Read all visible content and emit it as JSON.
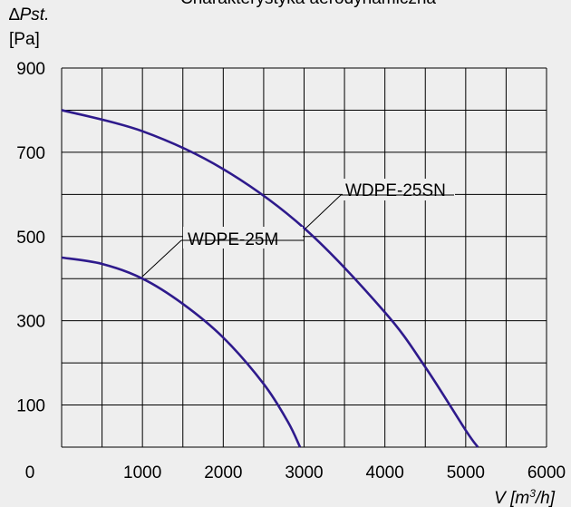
{
  "chart_data": {
    "type": "line",
    "title": "Charakterystyka aerodynamiczna",
    "ylabel": {
      "symbol": "∆",
      "name": "Pst.",
      "unit": "[Pa]"
    },
    "xlabel": {
      "name": "V ",
      "unit_open": "[m",
      "unit_exp": "3",
      "unit_close": "/h]"
    },
    "xlim": [
      0,
      6000
    ],
    "ylim": [
      0,
      900
    ],
    "x_ticks": [
      "1000",
      "2000",
      "3000",
      "4000",
      "5000",
      "6000"
    ],
    "y_ticks": [
      "900",
      "700",
      "500",
      "300",
      "100"
    ],
    "origin_label": "0",
    "grid": true,
    "colors": {
      "line": "#2e1a8c",
      "grid": "#000000",
      "background": "#eeeeee"
    },
    "series": [
      {
        "name": "WDPE-25M",
        "x": [
          0,
          500,
          1000,
          1500,
          2000,
          2500,
          2800,
          2950
        ],
        "y": [
          450,
          435,
          400,
          340,
          260,
          150,
          60,
          0
        ]
      },
      {
        "name": "WDPE-25SN",
        "x": [
          0,
          1000,
          2000,
          3000,
          4000,
          4500,
          5000,
          5150
        ],
        "y": [
          800,
          750,
          660,
          520,
          320,
          190,
          40,
          0
        ]
      }
    ]
  }
}
